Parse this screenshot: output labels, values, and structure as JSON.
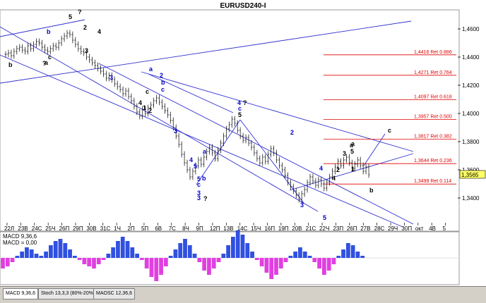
{
  "chart_data": {
    "type": "candlestick",
    "title": "EURUSD240-I",
    "y_axis": {
      "ticks": [
        "1,4600",
        "1,4400",
        "1,4200",
        "1,4000",
        "1,3800",
        "1,3600",
        "1,3400"
      ],
      "tick_values": [
        1.46,
        1.44,
        1.42,
        1.4,
        1.38,
        1.36,
        1.34
      ],
      "current_price_label": "1,3565",
      "current_price": 1.3565,
      "ylim": [
        1.3225,
        1.4735
      ]
    },
    "x_axis": {
      "ticks": [
        "22Л",
        "23В",
        "24С",
        "25Ч",
        "26П",
        "29П",
        "30В",
        "31С",
        "1Ч",
        "2П",
        "5П",
        "6В",
        "7С",
        "8Ч",
        "9П",
        "12П",
        "13В",
        "14С",
        "15Ч",
        "16П",
        "19П",
        "20В",
        "21С",
        "22Ч",
        "23П",
        "26П",
        "27В",
        "28С",
        "29Ч",
        "30П",
        "окт",
        "4В",
        "5"
      ]
    },
    "fib_levels": [
      {
        "label": "1,4416 Ret 0.886",
        "value": 1.4416
      },
      {
        "label": "1,4271 Ret 0.764",
        "value": 1.4271
      },
      {
        "label": "1,4097 Ret 0.618",
        "value": 1.4097
      },
      {
        "label": "1,3957 Ret 0.500",
        "value": 1.3957
      },
      {
        "label": "1,3817 Ret 0.382",
        "value": 1.3817
      },
      {
        "label": "1,3644 Ret 0.236",
        "value": 1.3644
      },
      {
        "label": "1,3499 Ret 0.114",
        "value": 1.3499
      }
    ],
    "closes": [
      1.442,
      1.443,
      1.441,
      1.444,
      1.446,
      1.447,
      1.445,
      1.444,
      1.448,
      1.446,
      1.449,
      1.451,
      1.45,
      1.447,
      1.445,
      1.444,
      1.446,
      1.448,
      1.447,
      1.45,
      1.453,
      1.455,
      1.457,
      1.456,
      1.452,
      1.449,
      1.446,
      1.444,
      1.443,
      1.44,
      1.438,
      1.436,
      1.434,
      1.432,
      1.43,
      1.428,
      1.425,
      1.427,
      1.424,
      1.421,
      1.419,
      1.417,
      1.414,
      1.416,
      1.412,
      1.409,
      1.405,
      1.401,
      1.398,
      1.403,
      1.4,
      1.404,
      1.406,
      1.409,
      1.411,
      1.408,
      1.405,
      1.402,
      1.399,
      1.395,
      1.39,
      1.384,
      1.378,
      1.371,
      1.365,
      1.36,
      1.355,
      1.359,
      1.363,
      1.367,
      1.364,
      1.369,
      1.373,
      1.376,
      1.372,
      1.368,
      1.374,
      1.379,
      1.384,
      1.389,
      1.392,
      1.396,
      1.393,
      1.388,
      1.384,
      1.381,
      1.383,
      1.379,
      1.376,
      1.372,
      1.368,
      1.365,
      1.369,
      1.366,
      1.371,
      1.375,
      1.372,
      1.367,
      1.363,
      1.36,
      1.356,
      1.351,
      1.348,
      1.345,
      1.342,
      1.339,
      1.343,
      1.346,
      1.351,
      1.355,
      1.352,
      1.349,
      1.353,
      1.35,
      1.347,
      1.351,
      1.355,
      1.359,
      1.362,
      1.366,
      1.363,
      1.367,
      1.369,
      1.365,
      1.361,
      1.364,
      1.367,
      1.363,
      1.359,
      1.362,
      1.3565
    ],
    "wave_labels": [
      {
        "text": "5",
        "color": "#000000"
      },
      {
        "text": "?",
        "color": "#000000"
      },
      {
        "text": "b",
        "color": "#0000cc"
      },
      {
        "text": "3",
        "color": "#000000"
      },
      {
        "text": "4",
        "color": "#000000"
      },
      {
        "text": "a",
        "color": "#000000"
      },
      {
        "text": "2",
        "color": "#000000"
      },
      {
        "text": "c",
        "color": "#000000"
      },
      {
        "text": "b",
        "color": "#000000"
      },
      {
        "text": "?",
        "color": "#000000"
      },
      {
        "text": "c",
        "color": "#000000"
      },
      {
        "text": "4",
        "color": "#000000"
      },
      {
        "text": "1",
        "color": "#000000"
      },
      {
        "text": "2",
        "color": "#000000"
      },
      {
        "text": "3",
        "color": "#0000cc"
      },
      {
        "text": "a",
        "color": "#0000cc"
      },
      {
        "text": "2",
        "color": "#0000cc"
      },
      {
        "text": "b",
        "color": "#0000cc"
      },
      {
        "text": "c",
        "color": "#0000cc"
      },
      {
        "text": "3",
        "color": "#0000cc"
      },
      {
        "text": "5",
        "color": "#0000cc"
      },
      {
        "text": "4",
        "color": "#0000cc"
      },
      {
        "text": "3",
        "color": "#0000cc"
      },
      {
        "text": "a",
        "color": "#0000cc"
      },
      {
        "text": "b",
        "color": "#0000cc"
      },
      {
        "text": "5",
        "color": "#0000cc"
      },
      {
        "text": "c",
        "color": "#0000cc"
      },
      {
        "text": "3",
        "color": "#0000cc"
      },
      {
        "text": "?",
        "color": "#000000"
      },
      {
        "text": "4",
        "color": "#0000cc"
      },
      {
        "text": "?",
        "color": "#000000"
      },
      {
        "text": "c",
        "color": "#0000cc"
      },
      {
        "text": "5",
        "color": "#000000"
      },
      {
        "text": "2",
        "color": "#0000cc"
      },
      {
        "text": "a",
        "color": "#000000"
      },
      {
        "text": "3",
        "color": "#0000cc"
      },
      {
        "text": "4",
        "color": "#0000cc"
      },
      {
        "text": "5",
        "color": "#0000cc"
      },
      {
        "text": "a",
        "color": "#000000"
      },
      {
        "text": "5",
        "color": "#000000"
      },
      {
        "text": "3",
        "color": "#000000"
      },
      {
        "text": "b",
        "color": "#000000"
      },
      {
        "text": "c",
        "color": "#000000"
      },
      {
        "text": "1",
        "color": "#000000"
      },
      {
        "text": "2",
        "color": "#000000"
      },
      {
        "text": "4",
        "color": "#000000"
      }
    ],
    "macd": {
      "label": "MACD 9,36,6",
      "value_label": "MACD = 0,00",
      "values": [
        -0.5,
        -0.4,
        -0.2,
        0.1,
        0.3,
        0.5,
        0.4,
        0.2,
        0.1,
        0.3,
        0.6,
        0.8,
        0.9,
        0.7,
        0.4,
        0.1,
        -0.1,
        -0.3,
        -0.4,
        -0.5,
        -0.3,
        -0.1,
        0.2,
        0.5,
        0.8,
        1.0,
        0.8,
        0.5,
        0.2,
        -0.1,
        -0.5,
        -0.9,
        -1.1,
        -0.8,
        -0.4,
        0.1,
        0.4,
        0.7,
        0.9,
        0.6,
        0.2,
        -0.2,
        -0.6,
        -0.8,
        -0.5,
        -0.2,
        0.2,
        0.6,
        1.0,
        1.3,
        1.1,
        0.7,
        0.3,
        -0.1,
        -0.4,
        -0.7,
        -1.0,
        -0.8,
        -0.5,
        -0.2,
        0.1,
        0.3,
        0.5,
        0.3,
        0.1,
        -0.2,
        -0.5,
        -0.8,
        -0.6,
        -0.3,
        0.1,
        0.4,
        0.7,
        0.6,
        0.3,
        0.1
      ]
    },
    "colors": {
      "candle": "#000000",
      "trend": "#3030d0",
      "fib": "#e00000",
      "macd_pos": "#3050e0",
      "macd_neg": "#e040e0",
      "price_tag": "#ffff66"
    }
  },
  "tabs": [
    {
      "label": "MACD 9,36,6"
    },
    {
      "label": "Stoch 13,3,3 (80%-20%)"
    },
    {
      "label": "MAOSC 12,36,6"
    }
  ]
}
